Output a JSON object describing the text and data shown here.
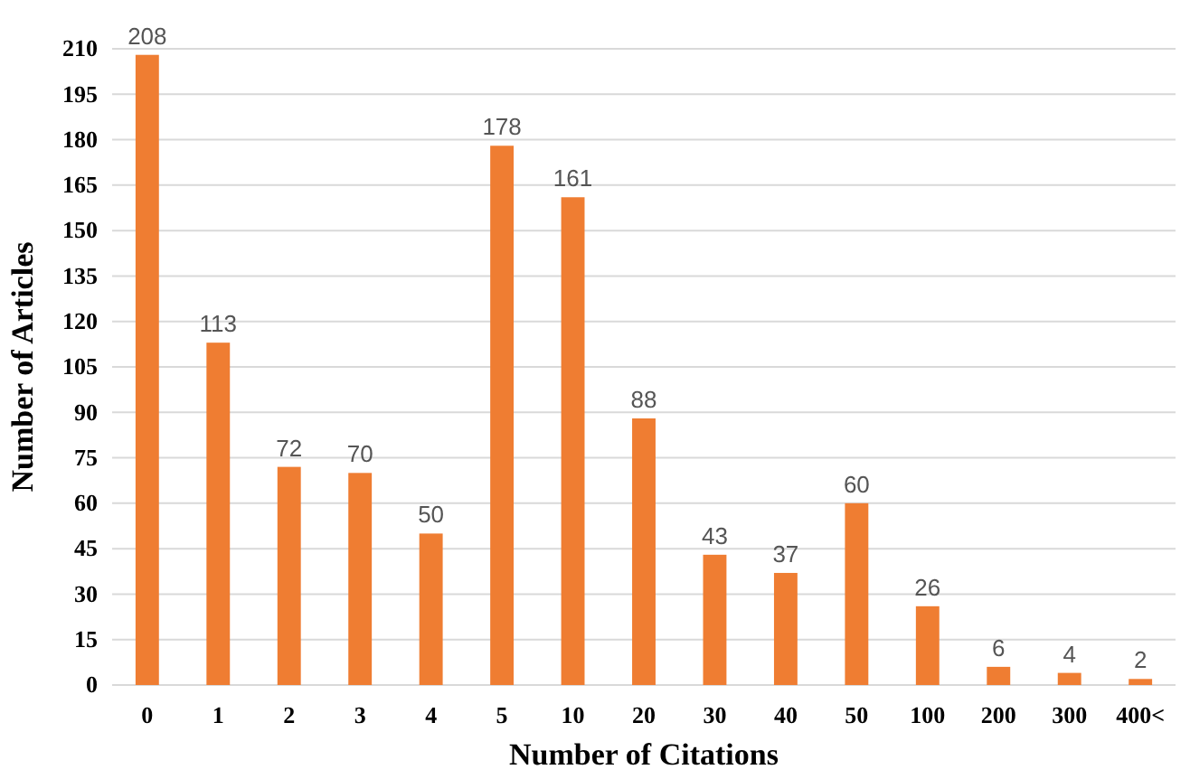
{
  "chart_data": {
    "type": "bar",
    "xlabel": "Number of Citations",
    "ylabel": "Number of Articles",
    "categories": [
      "0",
      "1",
      "2",
      "3",
      "4",
      "5",
      "10",
      "20",
      "30",
      "40",
      "50",
      "100",
      "200",
      "300",
      "400<"
    ],
    "values": [
      208,
      113,
      72,
      70,
      50,
      178,
      161,
      88,
      43,
      37,
      60,
      26,
      6,
      4,
      2
    ],
    "color": "#ef7d32",
    "ylim": [
      0,
      210
    ],
    "yticks": [
      0,
      15,
      30,
      45,
      60,
      75,
      90,
      105,
      120,
      135,
      150,
      165,
      180,
      195,
      210
    ],
    "grid": "y",
    "data_labels": true
  }
}
